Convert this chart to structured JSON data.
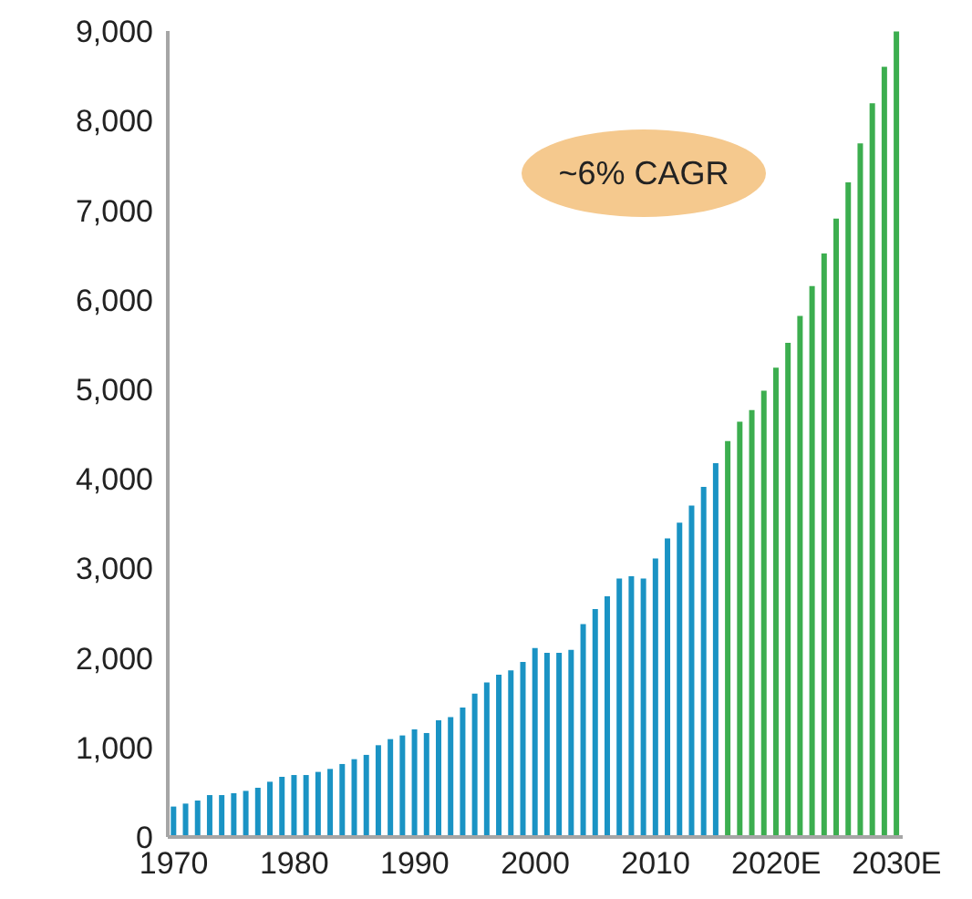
{
  "chart_data": {
    "type": "bar",
    "categories": [
      "1970",
      null,
      null,
      null,
      null,
      null,
      null,
      null,
      null,
      null,
      "1980",
      null,
      null,
      null,
      null,
      null,
      null,
      null,
      null,
      null,
      "1990",
      null,
      null,
      null,
      null,
      null,
      null,
      null,
      null,
      null,
      "2000",
      null,
      null,
      null,
      null,
      null,
      null,
      null,
      null,
      null,
      "2010",
      null,
      null,
      null,
      null,
      null,
      null,
      null,
      null,
      null,
      "2020E",
      null,
      null,
      null,
      null,
      null,
      null,
      null,
      null,
      null,
      "2030E"
    ],
    "values": [
      340,
      373,
      407,
      468,
      468,
      489,
      515,
      550,
      617,
      672,
      692,
      692,
      727,
      760,
      815,
      869,
      917,
      1025,
      1093,
      1134,
      1202,
      1161,
      1303,
      1338,
      1446,
      1602,
      1725,
      1812,
      1860,
      1955,
      2110,
      2057,
      2057,
      2090,
      2376,
      2545,
      2688,
      2886,
      2912,
      2886,
      3110,
      3334,
      3510,
      3700,
      3910,
      4175,
      4420,
      4637,
      4766,
      4984,
      5240,
      5519,
      5818,
      6151,
      6517,
      6904,
      7311,
      7745,
      8193,
      8601,
      8996
    ],
    "colors": [
      "#1a93c4",
      "#1a93c4",
      "#1a93c4",
      "#1a93c4",
      "#1a93c4",
      "#1a93c4",
      "#1a93c4",
      "#1a93c4",
      "#1a93c4",
      "#1a93c4",
      "#1a93c4",
      "#1a93c4",
      "#1a93c4",
      "#1a93c4",
      "#1a93c4",
      "#1a93c4",
      "#1a93c4",
      "#1a93c4",
      "#1a93c4",
      "#1a93c4",
      "#1a93c4",
      "#1a93c4",
      "#1a93c4",
      "#1a93c4",
      "#1a93c4",
      "#1a93c4",
      "#1a93c4",
      "#1a93c4",
      "#1a93c4",
      "#1a93c4",
      "#1a93c4",
      "#1a93c4",
      "#1a93c4",
      "#1a93c4",
      "#1a93c4",
      "#1a93c4",
      "#1a93c4",
      "#1a93c4",
      "#1a93c4",
      "#1a93c4",
      "#1a93c4",
      "#1a93c4",
      "#1a93c4",
      "#1a93c4",
      "#1a93c4",
      "#1a93c4",
      "#3cae4f",
      "#3cae4f",
      "#3cae4f",
      "#3cae4f",
      "#3cae4f",
      "#3cae4f",
      "#3cae4f",
      "#3cae4f",
      "#3cae4f",
      "#3cae4f",
      "#3cae4f",
      "#3cae4f",
      "#3cae4f",
      "#3cae4f",
      "#3cae4f"
    ],
    "ylim": [
      0,
      9000
    ],
    "yticks": [
      0,
      {
        "value": 1000,
        "label": "1,000"
      },
      {
        "value": 2000,
        "label": "2,000"
      },
      {
        "value": 3000,
        "label": "3,000"
      },
      {
        "value": 4000,
        "label": "4,000"
      },
      {
        "value": 5000,
        "label": "5,000"
      },
      {
        "value": 6000,
        "label": "6,000"
      },
      {
        "value": 7000,
        "label": "7,000"
      },
      {
        "value": 8000,
        "label": "8,000"
      },
      {
        "value": 9000,
        "label": "9,000"
      }
    ],
    "annotations": [
      "~6% CAGR"
    ],
    "grid": false,
    "legend": false
  }
}
